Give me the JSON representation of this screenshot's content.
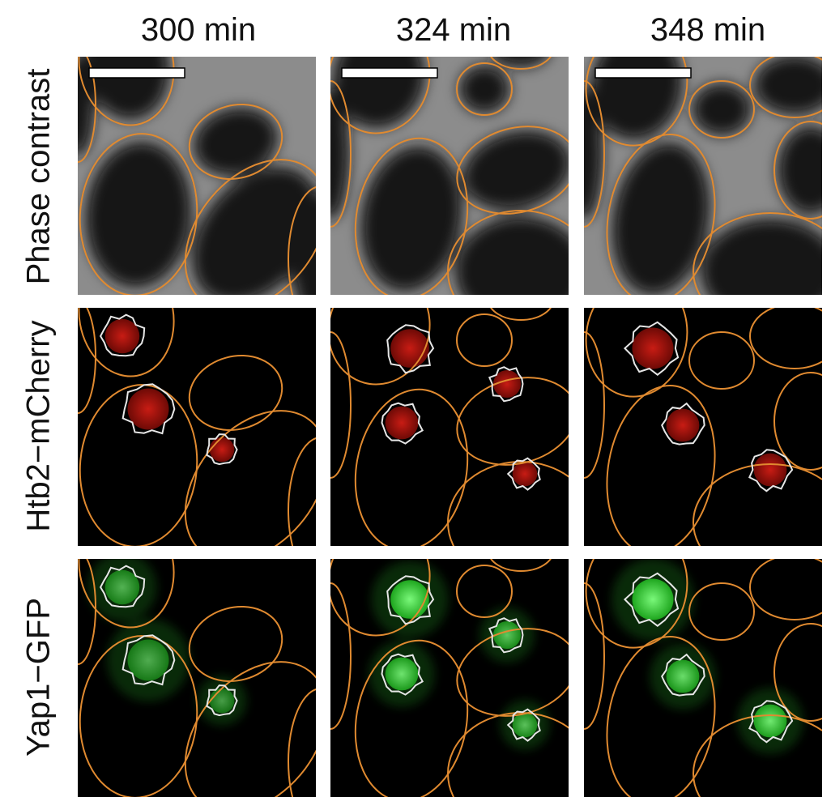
{
  "figure": {
    "columns": [
      "300 min",
      "324 min",
      "348 min"
    ],
    "rows": [
      "Phase contrast",
      "Htb2−mCherry",
      "Yap1−GFP"
    ],
    "scale_bar": {
      "present_in_row": "Phase contrast",
      "color": "#ffffff"
    },
    "channel_colors": {
      "Phase contrast": "#9a9a9a",
      "Htb2−mCherry": "#b51a12",
      "Yap1−GFP": "#3fdc3f"
    },
    "outline_colors": {
      "cell": "#e08a30",
      "nucleus": "#e6e6e6"
    }
  }
}
